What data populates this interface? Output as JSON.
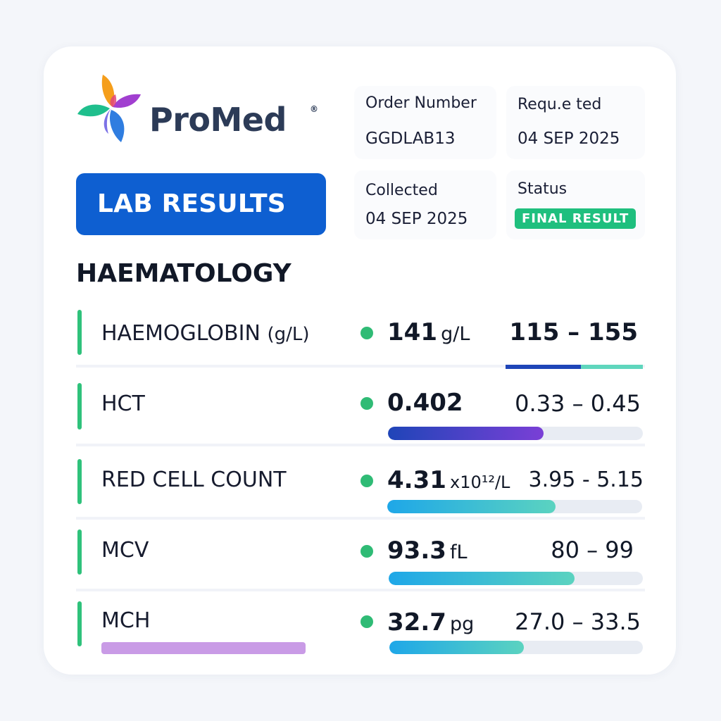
{
  "brand": {
    "name": "ProMed",
    "reg_mark": "®"
  },
  "header_button": {
    "label": "LAB RESULTS"
  },
  "order": {
    "label": "Order Number",
    "value": "GGDLAB13"
  },
  "requested": {
    "label": "Requ.e ted",
    "value": "04 SEP 2025"
  },
  "collected": {
    "label": "Collected",
    "value": "04 SEP 2025"
  },
  "status": {
    "label": "Status",
    "value": "FINAL RESULT"
  },
  "section": {
    "title": "HAEMATOLOGY"
  },
  "tests": [
    {
      "name": "HAEMOGLOBIN",
      "name_unit": "(g/L)",
      "value": "141",
      "unit": "g/L",
      "range": "115 – 155",
      "level": 0.55
    },
    {
      "name": "HCT",
      "value": "0.402",
      "unit": "",
      "range": "0.33 – 0.45",
      "level": 0.61
    },
    {
      "name": "RED CELL COUNT",
      "value": "4.31",
      "unit": "x10¹²/L",
      "range": "3.95 - 5.15",
      "level": 0.66
    },
    {
      "name": "MCV",
      "value": "93.3",
      "unit": "fL",
      "range": "80 – 99",
      "level": 0.73
    },
    {
      "name": "MCH",
      "value": "32.7",
      "unit": "pg",
      "range": "27.0 – 33.5",
      "level": 0.53
    }
  ],
  "colors": {
    "accent": "#0e5fd1",
    "status_green": "#1fbf7e",
    "marker_green": "#2fc27b",
    "bar_dark_blue": "#1f45b8",
    "bar_purple": "#7a3fd6",
    "bar_cyan": "#1ea7e8",
    "bar_teal": "#5bd3c0",
    "mch_tag": "#c99be6"
  }
}
